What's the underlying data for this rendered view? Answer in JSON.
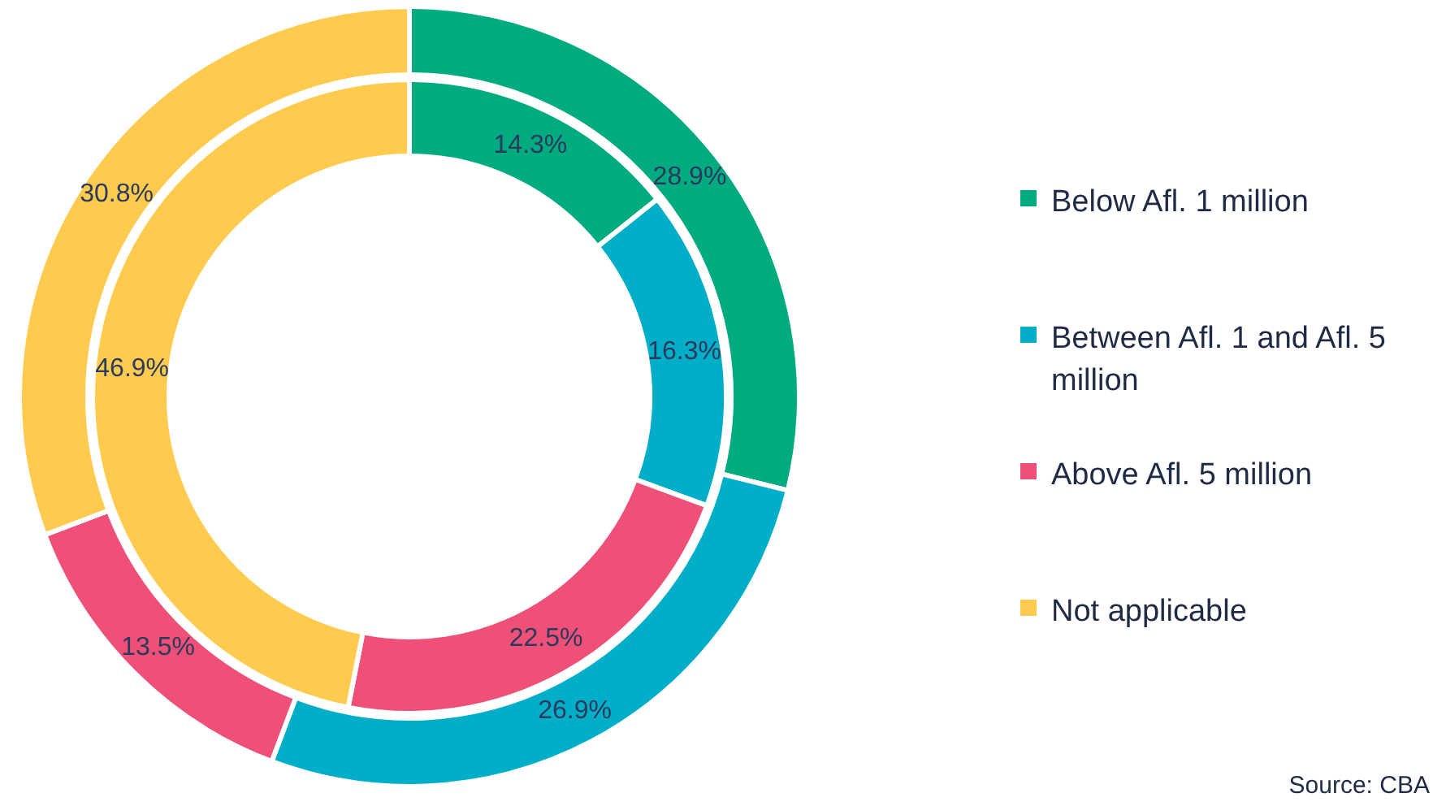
{
  "chart_data": {
    "type": "donut",
    "categories": [
      "Below Afl. 1 million",
      "Between Afl. 1 and Afl. 5 million",
      "Above Afl. 5 million",
      "Not applicable"
    ],
    "colors": [
      "#00ab80",
      "#00aec8",
      "#ee5077",
      "#fecb4e"
    ],
    "series": [
      {
        "values": [
          28.9,
          26.9,
          13.5,
          30.8
        ],
        "value_labels": [
          "28.9%",
          "26.9%",
          "13.5%",
          "30.8%"
        ]
      },
      {
        "values": [
          14.3,
          16.3,
          22.5,
          46.9
        ],
        "value_labels": [
          "14.3%",
          "16.3%",
          "22.5%",
          "46.9%"
        ]
      }
    ],
    "legend": "right",
    "annotations": [
      "Source: CBA"
    ]
  }
}
